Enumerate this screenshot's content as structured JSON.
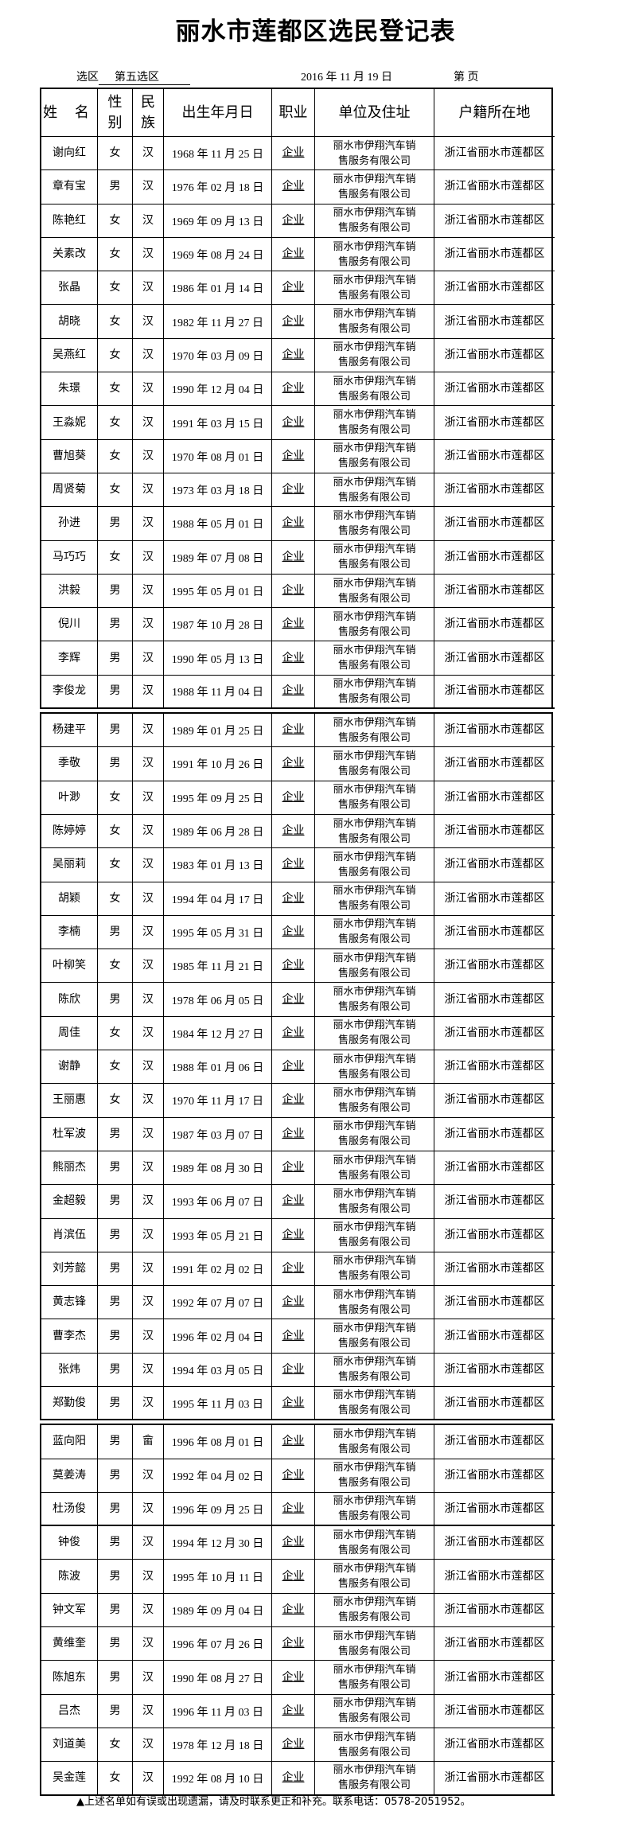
{
  "title": "丽水市莲都区选民登记表",
  "subheader": {
    "district_label": "选区",
    "district_value": "第五选区",
    "date": "2016 年 11 月 19 日",
    "page_label": "第        页"
  },
  "columns": [
    "姓 名",
    "性别",
    "民族",
    "出生年月日",
    "职业",
    "单位及住址",
    "户籍所在地"
  ],
  "groups": [
    [
      {
        "name": "谢向红",
        "gender": "女",
        "ethnicity": "汉",
        "dob": "1968 年 11 月 25 日",
        "job": "企业",
        "employer": "丽水市伊翔汽车销售服务有限公司",
        "hukou": "浙江省丽水市莲都区"
      },
      {
        "name": "章有宝",
        "gender": "男",
        "ethnicity": "汉",
        "dob": "1976 年 02 月 18 日",
        "job": "企业",
        "employer": "丽水市伊翔汽车销售服务有限公司",
        "hukou": "浙江省丽水市莲都区"
      },
      {
        "name": "陈艳红",
        "gender": "女",
        "ethnicity": "汉",
        "dob": "1969 年 09 月 13 日",
        "job": "企业",
        "employer": "丽水市伊翔汽车销售服务有限公司",
        "hukou": "浙江省丽水市莲都区"
      },
      {
        "name": "关素改",
        "gender": "女",
        "ethnicity": "汉",
        "dob": "1969 年 08 月 24 日",
        "job": "企业",
        "employer": "丽水市伊翔汽车销售服务有限公司",
        "hukou": "浙江省丽水市莲都区"
      },
      {
        "name": "张晶",
        "gender": "女",
        "ethnicity": "汉",
        "dob": "1986 年 01 月 14 日",
        "job": "企业",
        "employer": "丽水市伊翔汽车销售服务有限公司",
        "hukou": "浙江省丽水市莲都区"
      },
      {
        "name": "胡晓",
        "gender": "女",
        "ethnicity": "汉",
        "dob": "1982 年 11 月 27 日",
        "job": "企业",
        "employer": "丽水市伊翔汽车销售服务有限公司",
        "hukou": "浙江省丽水市莲都区"
      },
      {
        "name": "吴燕红",
        "gender": "女",
        "ethnicity": "汉",
        "dob": "1970 年 03 月 09 日",
        "job": "企业",
        "employer": "丽水市伊翔汽车销售服务有限公司",
        "hukou": "浙江省丽水市莲都区"
      },
      {
        "name": "朱璟",
        "gender": "女",
        "ethnicity": "汉",
        "dob": "1990 年 12 月 04 日",
        "job": "企业",
        "employer": "丽水市伊翔汽车销售服务有限公司",
        "hukou": "浙江省丽水市莲都区"
      },
      {
        "name": "王淼妮",
        "gender": "女",
        "ethnicity": "汉",
        "dob": "1991 年 03 月 15 日",
        "job": "企业",
        "employer": "丽水市伊翔汽车销售服务有限公司",
        "hukou": "浙江省丽水市莲都区"
      },
      {
        "name": "曹旭葵",
        "gender": "女",
        "ethnicity": "汉",
        "dob": "1970 年 08 月 01 日",
        "job": "企业",
        "employer": "丽水市伊翔汽车销售服务有限公司",
        "hukou": "浙江省丽水市莲都区"
      },
      {
        "name": "周贤菊",
        "gender": "女",
        "ethnicity": "汉",
        "dob": "1973 年 03 月 18 日",
        "job": "企业",
        "employer": "丽水市伊翔汽车销售服务有限公司",
        "hukou": "浙江省丽水市莲都区"
      },
      {
        "name": "孙进",
        "gender": "男",
        "ethnicity": "汉",
        "dob": "1988 年 05 月 01 日",
        "job": "企业",
        "employer": "丽水市伊翔汽车销售服务有限公司",
        "hukou": "浙江省丽水市莲都区"
      },
      {
        "name": "马巧巧",
        "gender": "女",
        "ethnicity": "汉",
        "dob": "1989 年 07 月 08 日",
        "job": "企业",
        "employer": "丽水市伊翔汽车销售服务有限公司",
        "hukou": "浙江省丽水市莲都区"
      },
      {
        "name": "洪毅",
        "gender": "男",
        "ethnicity": "汉",
        "dob": "1995 年 05 月 01 日",
        "job": "企业",
        "employer": "丽水市伊翔汽车销售服务有限公司",
        "hukou": "浙江省丽水市莲都区"
      },
      {
        "name": "倪川",
        "gender": "男",
        "ethnicity": "汉",
        "dob": "1987 年 10 月 28 日",
        "job": "企业",
        "employer": "丽水市伊翔汽车销售服务有限公司",
        "hukou": "浙江省丽水市莲都区"
      },
      {
        "name": "李辉",
        "gender": "男",
        "ethnicity": "汉",
        "dob": "1990 年 05 月 13 日",
        "job": "企业",
        "employer": "丽水市伊翔汽车销售服务有限公司",
        "hukou": "浙江省丽水市莲都区"
      },
      {
        "name": "李俊龙",
        "gender": "男",
        "ethnicity": "汉",
        "dob": "1988 年 11 月 04 日",
        "job": "企业",
        "employer": "丽水市伊翔汽车销售服务有限公司",
        "hukou": "浙江省丽水市莲都区"
      }
    ],
    [
      {
        "name": "杨建平",
        "gender": "男",
        "ethnicity": "汉",
        "dob": "1989 年 01 月 25 日",
        "job": "企业",
        "employer": "丽水市伊翔汽车销售服务有限公司",
        "hukou": "浙江省丽水市莲都区"
      },
      {
        "name": "季敬",
        "gender": "男",
        "ethnicity": "汉",
        "dob": "1991 年 10 月 26 日",
        "job": "企业",
        "employer": "丽水市伊翔汽车销售服务有限公司",
        "hukou": "浙江省丽水市莲都区"
      },
      {
        "name": "叶渺",
        "gender": "女",
        "ethnicity": "汉",
        "dob": "1995 年 09 月 25 日",
        "job": "企业",
        "employer": "丽水市伊翔汽车销售服务有限公司",
        "hukou": "浙江省丽水市莲都区"
      },
      {
        "name": "陈婷婷",
        "gender": "女",
        "ethnicity": "汉",
        "dob": "1989 年 06 月 28 日",
        "job": "企业",
        "employer": "丽水市伊翔汽车销售服务有限公司",
        "hukou": "浙江省丽水市莲都区"
      },
      {
        "name": "吴丽莉",
        "gender": "女",
        "ethnicity": "汉",
        "dob": "1983 年 01 月 13 日",
        "job": "企业",
        "employer": "丽水市伊翔汽车销售服务有限公司",
        "hukou": "浙江省丽水市莲都区"
      },
      {
        "name": "胡颖",
        "gender": "女",
        "ethnicity": "汉",
        "dob": "1994 年 04 月 17 日",
        "job": "企业",
        "employer": "丽水市伊翔汽车销售服务有限公司",
        "hukou": "浙江省丽水市莲都区"
      },
      {
        "name": "李楠",
        "gender": "男",
        "ethnicity": "汉",
        "dob": "1995 年 05 月 31 日",
        "job": "企业",
        "employer": "丽水市伊翔汽车销售服务有限公司",
        "hukou": "浙江省丽水市莲都区"
      },
      {
        "name": "叶柳笑",
        "gender": "女",
        "ethnicity": "汉",
        "dob": "1985 年 11 月 21 日",
        "job": "企业",
        "employer": "丽水市伊翔汽车销售服务有限公司",
        "hukou": "浙江省丽水市莲都区"
      },
      {
        "name": "陈欣",
        "gender": "男",
        "ethnicity": "汉",
        "dob": "1978 年 06 月 05 日",
        "job": "企业",
        "employer": "丽水市伊翔汽车销售服务有限公司",
        "hukou": "浙江省丽水市莲都区"
      },
      {
        "name": "周佳",
        "gender": "女",
        "ethnicity": "汉",
        "dob": "1984 年 12 月 27 日",
        "job": "企业",
        "employer": "丽水市伊翔汽车销售服务有限公司",
        "hukou": "浙江省丽水市莲都区"
      },
      {
        "name": "谢静",
        "gender": "女",
        "ethnicity": "汉",
        "dob": "1988 年 01 月 06 日",
        "job": "企业",
        "employer": "丽水市伊翔汽车销售服务有限公司",
        "hukou": "浙江省丽水市莲都区"
      },
      {
        "name": "王丽惠",
        "gender": "女",
        "ethnicity": "汉",
        "dob": "1970 年 11 月 17 日",
        "job": "企业",
        "employer": "丽水市伊翔汽车销售服务有限公司",
        "hukou": "浙江省丽水市莲都区"
      },
      {
        "name": "杜军波",
        "gender": "男",
        "ethnicity": "汉",
        "dob": "1987 年 03 月 07 日",
        "job": "企业",
        "employer": "丽水市伊翔汽车销售服务有限公司",
        "hukou": "浙江省丽水市莲都区"
      },
      {
        "name": "熊丽杰",
        "gender": "男",
        "ethnicity": "汉",
        "dob": "1989 年 08 月 30 日",
        "job": "企业",
        "employer": "丽水市伊翔汽车销售服务有限公司",
        "hukou": "浙江省丽水市莲都区"
      },
      {
        "name": "金超毅",
        "gender": "男",
        "ethnicity": "汉",
        "dob": "1993 年 06 月 07 日",
        "job": "企业",
        "employer": "丽水市伊翔汽车销售服务有限公司",
        "hukou": "浙江省丽水市莲都区"
      },
      {
        "name": "肖滨伍",
        "gender": "男",
        "ethnicity": "汉",
        "dob": "1993 年 05 月 21 日",
        "job": "企业",
        "employer": "丽水市伊翔汽车销售服务有限公司",
        "hukou": "浙江省丽水市莲都区"
      },
      {
        "name": "刘芳懿",
        "gender": "男",
        "ethnicity": "汉",
        "dob": "1991 年 02 月 02 日",
        "job": "企业",
        "employer": "丽水市伊翔汽车销售服务有限公司",
        "hukou": "浙江省丽水市莲都区"
      },
      {
        "name": "黄志锋",
        "gender": "男",
        "ethnicity": "汉",
        "dob": "1992 年 07 月 07 日",
        "job": "企业",
        "employer": "丽水市伊翔汽车销售服务有限公司",
        "hukou": "浙江省丽水市莲都区"
      },
      {
        "name": "曹李杰",
        "gender": "男",
        "ethnicity": "汉",
        "dob": "1996 年 02 月 04 日",
        "job": "企业",
        "employer": "丽水市伊翔汽车销售服务有限公司",
        "hukou": "浙江省丽水市莲都区"
      },
      {
        "name": "张炜",
        "gender": "男",
        "ethnicity": "汉",
        "dob": "1994 年 03 月 05 日",
        "job": "企业",
        "employer": "丽水市伊翔汽车销售服务有限公司",
        "hukou": "浙江省丽水市莲都区"
      },
      {
        "name": "郑勤俊",
        "gender": "男",
        "ethnicity": "汉",
        "dob": "1995 年 11 月 03 日",
        "job": "企业",
        "employer": "丽水市伊翔汽车销售服务有限公司",
        "hukou": "浙江省丽水市莲都区"
      }
    ],
    [
      {
        "name": "蓝向阳",
        "gender": "男",
        "ethnicity": "畲",
        "dob": "1996 年 08 月 01 日",
        "job": "企业",
        "employer": "丽水市伊翔汽车销售服务有限公司",
        "hukou": "浙江省丽水市莲都区"
      },
      {
        "name": "莫姜涛",
        "gender": "男",
        "ethnicity": "汉",
        "dob": "1992 年 04 月 02 日",
        "job": "企业",
        "employer": "丽水市伊翔汽车销售服务有限公司",
        "hukou": "浙江省丽水市莲都区"
      },
      {
        "name": "杜汤俊",
        "gender": "男",
        "ethnicity": "汉",
        "dob": "1996 年 09 月 25 日",
        "job": "企业",
        "employer": "丽水市伊翔汽车销售服务有限公司",
        "hukou": "浙江省丽水市莲都区"
      },
      {
        "name": "钟俊",
        "gender": "男",
        "ethnicity": "汉",
        "dob": "1994 年 12 月 30 日",
        "job": "企业",
        "employer": "丽水市伊翔汽车销售服务有限公司",
        "hukou": "浙江省丽水市莲都区"
      },
      {
        "name": "陈波",
        "gender": "男",
        "ethnicity": "汉",
        "dob": "1995 年 10 月 11 日",
        "job": "企业",
        "employer": "丽水市伊翔汽车销售服务有限公司",
        "hukou": "浙江省丽水市莲都区"
      },
      {
        "name": "钟文军",
        "gender": "男",
        "ethnicity": "汉",
        "dob": "1989 年 09 月 04 日",
        "job": "企业",
        "employer": "丽水市伊翔汽车销售服务有限公司",
        "hukou": "浙江省丽水市莲都区"
      },
      {
        "name": "黄维奎",
        "gender": "男",
        "ethnicity": "汉",
        "dob": "1996 年 07 月 26 日",
        "job": "企业",
        "employer": "丽水市伊翔汽车销售服务有限公司",
        "hukou": "浙江省丽水市莲都区"
      },
      {
        "name": "陈旭东",
        "gender": "男",
        "ethnicity": "汉",
        "dob": "1990 年 08 月 27 日",
        "job": "企业",
        "employer": "丽水市伊翔汽车销售服务有限公司",
        "hukou": "浙江省丽水市莲都区"
      },
      {
        "name": "吕杰",
        "gender": "男",
        "ethnicity": "汉",
        "dob": "1996 年 11 月 03 日",
        "job": "企业",
        "employer": "丽水市伊翔汽车销售服务有限公司",
        "hukou": "浙江省丽水市莲都区"
      },
      {
        "name": "刘道美",
        "gender": "女",
        "ethnicity": "汉",
        "dob": "1978 年 12 月 18 日",
        "job": "企业",
        "employer": "丽水市伊翔汽车销售服务有限公司",
        "hukou": "浙江省丽水市莲都区"
      },
      {
        "name": "吴金莲",
        "gender": "女",
        "ethnicity": "汉",
        "dob": "1992 年 08 月 10 日",
        "job": "企业",
        "employer": "丽水市伊翔汽车销售服务有限公司",
        "hukou": "浙江省丽水市莲都区"
      }
    ]
  ],
  "footer": "▲上述名单如有误或出现遗漏，请及时联系更正和补充。联系电话：0578-2051952。"
}
